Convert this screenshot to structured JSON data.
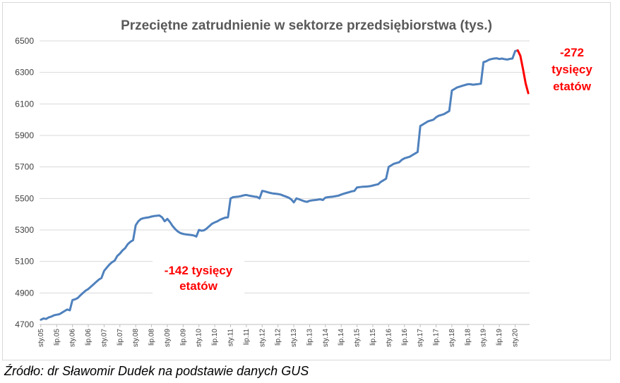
{
  "chart_data": {
    "type": "line",
    "title": "Przeciętne zatrudnienie w sektorze przedsiębiorstwa (tys.)",
    "ylim": [
      4700,
      6500
    ],
    "y_ticks": [
      4700,
      4900,
      5100,
      5300,
      5500,
      5700,
      5900,
      6100,
      6300,
      6500
    ],
    "x_tick_labels": [
      "sty.05",
      "lip.05",
      "sty.06",
      "lip.06",
      "sty.07",
      "lip.07",
      "sty.08",
      "lip.08",
      "sty.09",
      "lip.09",
      "sty.10",
      "lip.10",
      "sty.11",
      "lip.11",
      "sty.12",
      "lip.12",
      "sty.13",
      "lip.13",
      "sty.14",
      "lip.14",
      "sty.15",
      "lip.15",
      "sty.16",
      "lip.16",
      "sty.17",
      "lip.17",
      "sty.18",
      "lip.18",
      "sty.19",
      "lip.19",
      "sty.20"
    ],
    "grid": "horizontal",
    "legend": "none",
    "series_color": "#4f81bd",
    "highlight_color": "#ff0000",
    "series": [
      {
        "x": [
          "2005-01",
          "2005-02",
          "2005-03",
          "2005-04",
          "2005-05",
          "2005-06",
          "2005-07",
          "2005-08",
          "2005-09",
          "2005-10",
          "2005-11",
          "2005-12",
          "2006-01",
          "2006-02",
          "2006-03",
          "2006-04",
          "2006-05",
          "2006-06",
          "2006-07",
          "2006-08",
          "2006-09",
          "2006-10",
          "2006-11",
          "2006-12",
          "2007-01",
          "2007-02",
          "2007-03",
          "2007-04",
          "2007-05",
          "2007-06",
          "2007-07",
          "2007-08",
          "2007-09",
          "2007-10",
          "2007-11",
          "2007-12",
          "2008-01",
          "2008-02",
          "2008-03",
          "2008-04",
          "2008-05",
          "2008-06",
          "2008-07",
          "2008-08",
          "2008-09",
          "2008-10",
          "2008-11",
          "2008-12",
          "2009-01",
          "2009-02",
          "2009-03",
          "2009-04",
          "2009-05",
          "2009-06",
          "2009-07",
          "2009-08",
          "2009-09",
          "2009-10",
          "2009-11",
          "2009-12",
          "2010-01",
          "2010-02",
          "2010-03",
          "2010-04",
          "2010-05",
          "2010-06",
          "2010-07",
          "2010-08",
          "2010-09",
          "2010-10",
          "2010-11",
          "2010-12",
          "2011-01",
          "2011-02",
          "2011-03",
          "2011-04",
          "2011-05",
          "2011-06",
          "2011-07",
          "2011-08",
          "2011-09",
          "2011-10",
          "2011-11",
          "2011-12",
          "2012-01",
          "2012-02",
          "2012-03",
          "2012-04",
          "2012-05",
          "2012-06",
          "2012-07",
          "2012-08",
          "2012-09",
          "2012-10",
          "2012-11",
          "2012-12",
          "2013-01",
          "2013-02",
          "2013-03",
          "2013-04",
          "2013-05",
          "2013-06",
          "2013-07",
          "2013-08",
          "2013-09",
          "2013-10",
          "2013-11",
          "2013-12",
          "2014-01",
          "2014-02",
          "2014-03",
          "2014-04",
          "2014-05",
          "2014-06",
          "2014-07",
          "2014-08",
          "2014-09",
          "2014-10",
          "2014-11",
          "2014-12",
          "2015-01",
          "2015-02",
          "2015-03",
          "2015-04",
          "2015-05",
          "2015-06",
          "2015-07",
          "2015-08",
          "2015-09",
          "2015-10",
          "2015-11",
          "2015-12",
          "2016-01",
          "2016-02",
          "2016-03",
          "2016-04",
          "2016-05",
          "2016-06",
          "2016-07",
          "2016-08",
          "2016-09",
          "2016-10",
          "2016-11",
          "2016-12",
          "2017-01",
          "2017-02",
          "2017-03",
          "2017-04",
          "2017-05",
          "2017-06",
          "2017-07",
          "2017-08",
          "2017-09",
          "2017-10",
          "2017-11",
          "2017-12",
          "2018-01",
          "2018-02",
          "2018-03",
          "2018-04",
          "2018-05",
          "2018-06",
          "2018-07",
          "2018-08",
          "2018-09",
          "2018-10",
          "2018-11",
          "2018-12",
          "2019-01",
          "2019-02",
          "2019-03",
          "2019-04",
          "2019-05",
          "2019-06",
          "2019-07",
          "2019-08",
          "2019-09",
          "2019-10",
          "2019-11",
          "2019-12",
          "2020-01",
          "2020-02",
          "2020-03",
          "2020-04",
          "2020-05",
          "2020-06"
        ],
        "values": [
          4730,
          4738,
          4735,
          4745,
          4750,
          4758,
          4762,
          4765,
          4775,
          4785,
          4795,
          4790,
          4855,
          4860,
          4868,
          4885,
          4900,
          4915,
          4925,
          4940,
          4955,
          4970,
          4985,
          4995,
          5040,
          5060,
          5080,
          5095,
          5105,
          5135,
          5150,
          5170,
          5185,
          5210,
          5225,
          5235,
          5330,
          5355,
          5370,
          5375,
          5378,
          5380,
          5385,
          5388,
          5390,
          5392,
          5380,
          5355,
          5370,
          5350,
          5325,
          5305,
          5290,
          5280,
          5275,
          5272,
          5270,
          5268,
          5265,
          5258,
          5300,
          5295,
          5298,
          5310,
          5325,
          5340,
          5348,
          5355,
          5365,
          5372,
          5378,
          5380,
          5500,
          5508,
          5510,
          5512,
          5515,
          5520,
          5522,
          5518,
          5515,
          5512,
          5510,
          5500,
          5548,
          5545,
          5540,
          5535,
          5532,
          5530,
          5528,
          5525,
          5518,
          5512,
          5505,
          5495,
          5475,
          5500,
          5495,
          5488,
          5482,
          5478,
          5485,
          5488,
          5490,
          5492,
          5495,
          5490,
          5505,
          5508,
          5510,
          5512,
          5515,
          5518,
          5525,
          5530,
          5535,
          5540,
          5545,
          5548,
          5570,
          5572,
          5574,
          5575,
          5576,
          5578,
          5582,
          5586,
          5590,
          5605,
          5615,
          5625,
          5700,
          5710,
          5720,
          5725,
          5730,
          5745,
          5755,
          5760,
          5765,
          5775,
          5785,
          5795,
          5960,
          5970,
          5980,
          5990,
          5995,
          6000,
          6015,
          6025,
          6030,
          6035,
          6045,
          6055,
          6185,
          6195,
          6205,
          6210,
          6215,
          6220,
          6225,
          6225,
          6222,
          6224,
          6226,
          6228,
          6365,
          6370,
          6380,
          6385,
          6388,
          6390,
          6385,
          6388,
          6384,
          6382,
          6386,
          6388,
          6435,
          6440,
          6405,
          6320,
          6230,
          6168
        ]
      }
    ],
    "highlight_from": "2020-02",
    "annotations": [
      {
        "lines": [
          "-142 tysięcy",
          "etatów"
        ]
      },
      {
        "lines": [
          "-272",
          "tysięcy",
          "etatów"
        ]
      }
    ]
  },
  "source_text": "Źródło: dr Sławomir Dudek na podstawie danych GUS"
}
